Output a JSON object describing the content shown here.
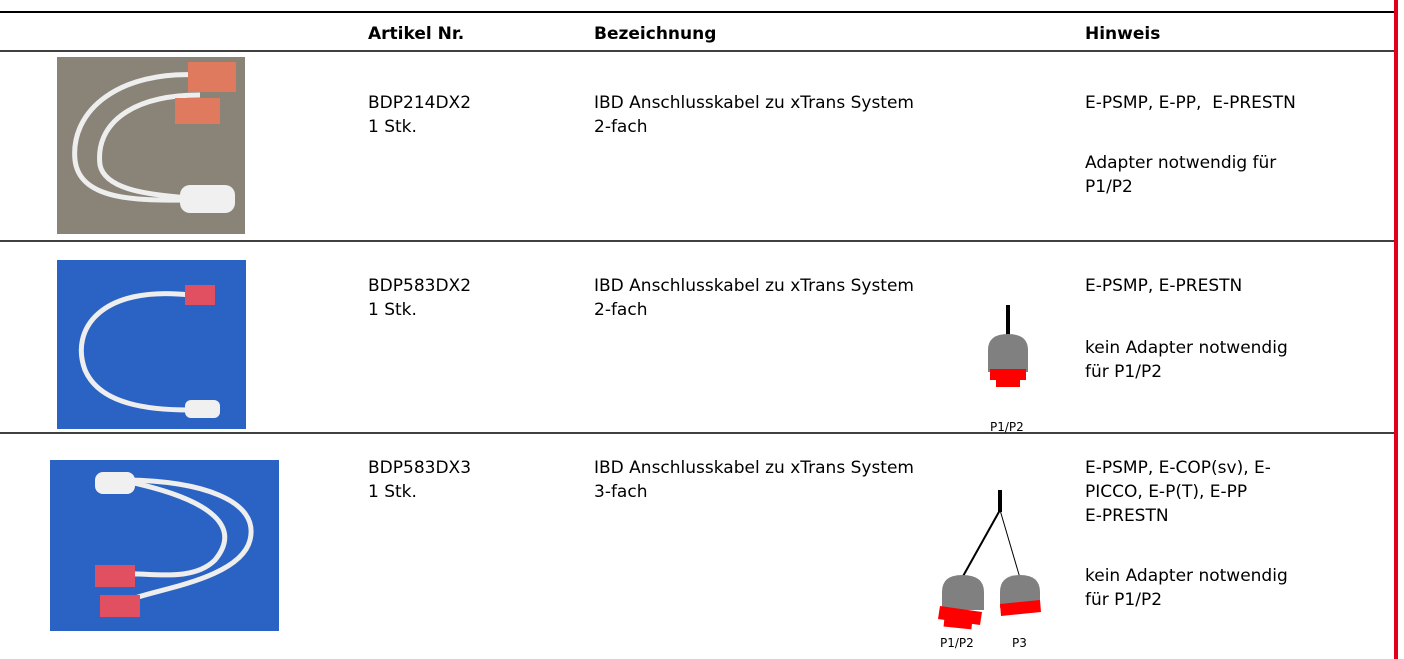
{
  "table": {
    "header": [
      "Artikel Nr.",
      "Bezeichnung",
      "Hinweis"
    ],
    "rows": [
      {
        "article": "BDP214DX2",
        "quantity": "1 Stk.",
        "description": [
          "IBD Anschlusskabel zu xTrans System",
          "2-fach"
        ],
        "notes": [
          [
            "E-PSMP, E-PP,  E-PRESTN"
          ],
          [
            "Adapter notwendig für",
            "P1/P2"
          ]
        ],
        "connectors": []
      },
      {
        "article": "BDP583DX2",
        "quantity": "1 Stk.",
        "description": [
          "IBD Anschlusskabel zu xTrans System",
          "2-fach"
        ],
        "notes": [
          [
            "E-PSMP, E-PRESTN"
          ],
          [
            "kein Adapter notwendig",
            "für P1/P2"
          ]
        ],
        "connectors": [
          "P1/P2"
        ]
      },
      {
        "article": "BDP583DX3",
        "quantity": "1 Stk.",
        "description": [
          "IBD Anschlusskabel zu xTrans System",
          "3-fach"
        ],
        "notes": [
          [
            "E-PSMP, E-COP(sv), E-",
            "PICCO, E-P(T), E-PP",
            "E-PRESTN"
          ],
          [
            "kein Adapter notwendig",
            "für P1/P2"
          ]
        ],
        "connectors": [
          "P1/P2",
          "P3"
        ]
      }
    ]
  }
}
